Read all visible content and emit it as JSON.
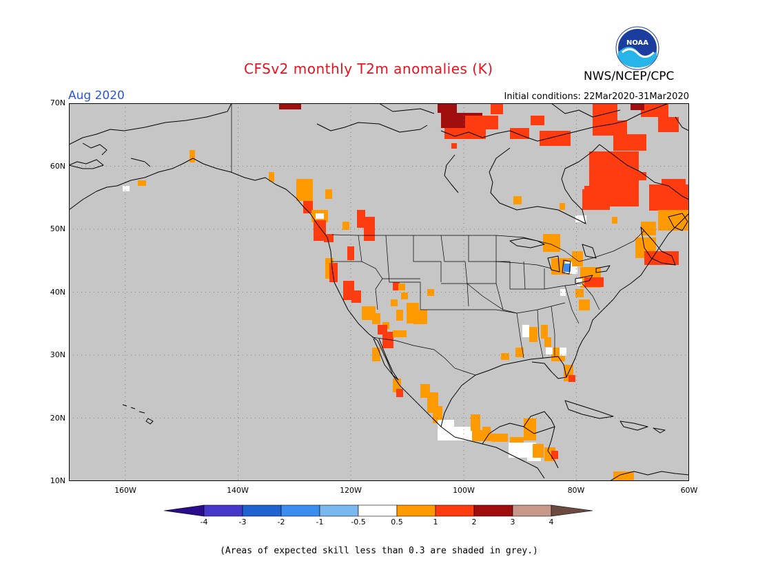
{
  "title": "CFSv2 monthly T2m anomalies (K)",
  "agency": "NWS/NCEP/CPC",
  "logo_text": "NOAA",
  "target_month": "Aug 2020",
  "initial_conditions": "Initial conditions: 22Mar2020-31Mar2020",
  "lat_labels": [
    "70N",
    "60N",
    "50N",
    "40N",
    "30N",
    "20N",
    "10N"
  ],
  "lon_labels": [
    "160W",
    "140W",
    "120W",
    "100W",
    "80W",
    "60W"
  ],
  "colorbar": {
    "labels": [
      "-4",
      "-3",
      "-2",
      "-1",
      "-0.5",
      "0.5",
      "1",
      "2",
      "3",
      "4"
    ],
    "colors": [
      "#2a0d8c",
      "#4638c8",
      "#1f63d0",
      "#3b8df0",
      "#7ab8f0",
      "#ffffff",
      "#ff9a00",
      "#ff3b10",
      "#a00d0d",
      "#c8998a",
      "#6b4a3f"
    ]
  },
  "footnote": "(Areas of expected skill less than 0.3 are shaded in grey.)",
  "colors": {
    "map_background": "#c6c6c6",
    "positive_0_5_1": "#ff9a00",
    "positive_1_2": "#ff3b10",
    "positive_2_3": "#a00d0d",
    "neutral": "#ffffff",
    "negative_1_0_5": "#3b8df0",
    "title": "#e8111d",
    "month": "#2b57d8"
  }
}
